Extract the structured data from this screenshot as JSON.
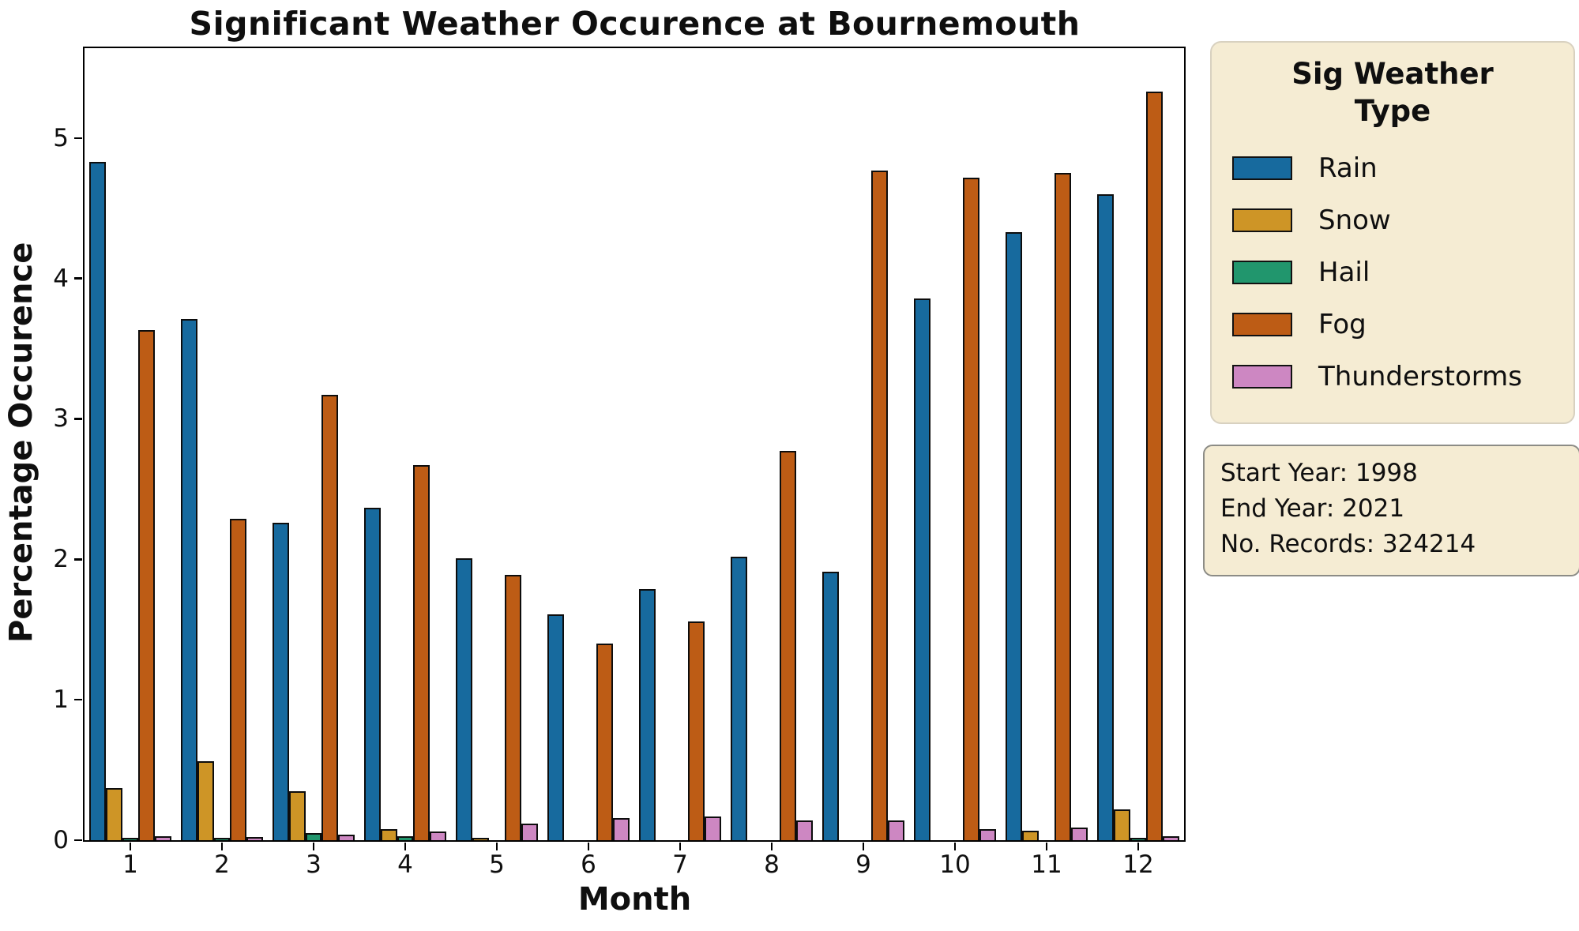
{
  "chart_data": {
    "type": "bar",
    "title": "Significant Weather Occurence at Bournemouth",
    "xlabel": "Month",
    "ylabel": "Percentage Occurence",
    "categories": [
      "1",
      "2",
      "3",
      "4",
      "5",
      "6",
      "7",
      "8",
      "9",
      "10",
      "11",
      "12"
    ],
    "series": [
      {
        "name": "Rain",
        "color": "#176a9e",
        "values": [
          4.83,
          3.71,
          2.26,
          2.37,
          2.01,
          1.61,
          1.79,
          2.02,
          1.91,
          3.86,
          4.33,
          4.6
        ]
      },
      {
        "name": "Snow",
        "color": "#ce9526",
        "values": [
          0.37,
          0.56,
          0.35,
          0.08,
          0.01,
          0.0,
          0.0,
          0.0,
          0.0,
          0.0,
          0.07,
          0.22
        ]
      },
      {
        "name": "Hail",
        "color": "#21966d",
        "values": [
          0.01,
          0.01,
          0.05,
          0.03,
          0.0,
          0.0,
          0.0,
          0.0,
          0.0,
          0.0,
          0.0,
          0.01
        ]
      },
      {
        "name": "Fog",
        "color": "#bd5c15",
        "values": [
          3.63,
          2.29,
          3.17,
          2.67,
          1.89,
          1.4,
          1.56,
          2.77,
          4.77,
          4.72,
          4.75,
          5.33
        ]
      },
      {
        "name": "Thunderstorms",
        "color": "#cd87c2",
        "values": [
          0.03,
          0.02,
          0.04,
          0.06,
          0.12,
          0.16,
          0.17,
          0.14,
          0.14,
          0.08,
          0.09,
          0.03
        ]
      }
    ],
    "ylim": [
      0,
      5.64
    ],
    "yticks": [
      "0",
      "1",
      "2",
      "3",
      "4",
      "5"
    ],
    "grid": false,
    "legend_position": "outside upper right",
    "bar_edge_color": "#0d0d0d"
  },
  "legend": {
    "title_line1": "Sig Weather",
    "title_line2": "Type"
  },
  "info_box": {
    "lines": [
      "Start Year: 1998",
      "End Year: 2021",
      "No. Records: 324214"
    ]
  },
  "colors": {
    "panel_background": "#f5ecd3",
    "info_border": "#8c8c86",
    "axis": "#000000"
  }
}
